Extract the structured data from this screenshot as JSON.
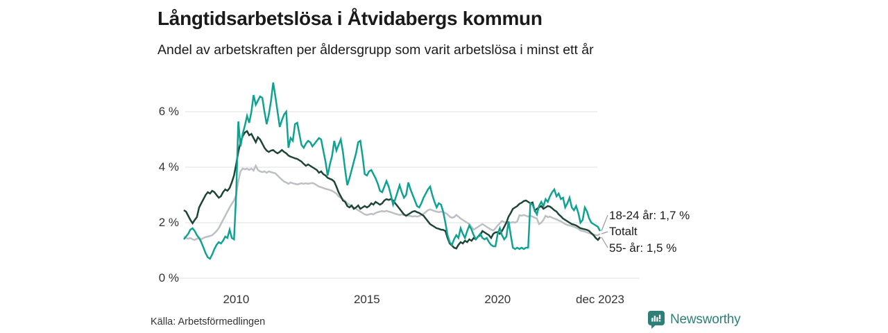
{
  "header": {
    "title": "Långtidsarbetslösa i Åtvidabergs kommun",
    "subtitle": "Andel av arbetskraften per åldersgrupp som varit arbetslösa i minst ett år"
  },
  "footer": {
    "source": "Källa: Arbetsförmedlingen",
    "brand": "Newsworthy",
    "brand_color": "#2d7f77"
  },
  "chart_data": {
    "type": "line",
    "unit": "%",
    "x_start": 2008.0,
    "x_end": 2023.9167,
    "points_per_year": 12,
    "ylim": [
      0,
      7.3
    ],
    "grid": "horizontal",
    "gridline_color": "#e4e6e7",
    "connector_color": "#999999",
    "y_ticks": [
      {
        "value": 0,
        "label": "0 %"
      },
      {
        "value": 2,
        "label": "2 %"
      },
      {
        "value": 4,
        "label": "4 %"
      },
      {
        "value": 6,
        "label": "6 %"
      }
    ],
    "x_ticks": [
      {
        "t": 2010.0,
        "label": "2010"
      },
      {
        "t": 2015.0,
        "label": "2015"
      },
      {
        "t": 2020.0,
        "label": "2020"
      },
      {
        "t": 2023.9167,
        "label": "dec 2023"
      }
    ],
    "end_labels": [
      {
        "series": "18-24 år",
        "text": "18-24 år: 1,7 %"
      },
      {
        "series": "Totalt",
        "text": "Totalt"
      },
      {
        "series": "55- år",
        "text": "55- år: 1,5 %"
      }
    ],
    "series": [
      {
        "name": "Totalt",
        "color": "#bcbfc4",
        "values": [
          1.5,
          1.45,
          1.42,
          1.45,
          1.4,
          1.38,
          1.42,
          1.45,
          1.4,
          1.45,
          1.48,
          1.5,
          1.52,
          1.55,
          1.62,
          1.7,
          1.8,
          1.95,
          2.1,
          2.25,
          2.4,
          2.55,
          2.68,
          2.8,
          3.0,
          3.5,
          3.85,
          3.95,
          3.92,
          3.95,
          3.9,
          3.95,
          3.88,
          4.05,
          3.9,
          3.85,
          3.82,
          3.85,
          3.8,
          3.85,
          3.82,
          3.8,
          3.78,
          3.7,
          3.62,
          3.55,
          3.48,
          3.45,
          3.4,
          3.45,
          3.42,
          3.4,
          3.38,
          3.4,
          3.42,
          3.4,
          3.42,
          3.4,
          3.42,
          3.43,
          3.4,
          3.35,
          3.3,
          3.28,
          3.25,
          3.22,
          3.2,
          3.18,
          3.15,
          3.1,
          3.05,
          2.95,
          2.9,
          2.85,
          2.78,
          2.7,
          2.65,
          2.6,
          2.55,
          2.5,
          2.45,
          2.4,
          2.35,
          2.3,
          2.28,
          2.3,
          2.32,
          2.3,
          2.35,
          2.38,
          2.4,
          2.42,
          2.4,
          2.43,
          2.4,
          2.38,
          2.35,
          2.32,
          2.3,
          2.28,
          2.3,
          2.28,
          2.26,
          2.25,
          2.24,
          2.22,
          2.24,
          2.22,
          2.24,
          2.28,
          2.32,
          2.38,
          2.45,
          2.48,
          2.45,
          2.42,
          2.4,
          2.38,
          2.4,
          2.38,
          2.35,
          2.3,
          2.22,
          2.18,
          2.2,
          2.28,
          2.22,
          2.15,
          2.1,
          2.05,
          2.0,
          1.95,
          1.85,
          1.75,
          1.8,
          1.85,
          1.9,
          1.95,
          1.9,
          1.85,
          1.8,
          1.75,
          1.72,
          1.8,
          1.9,
          1.98,
          2.06,
          2.02,
          2.0,
          1.98,
          2.0,
          2.02,
          2.0,
          2.05,
          2.27,
          2.25,
          2.28,
          2.25,
          2.22,
          2.25,
          2.22,
          2.18,
          2.15,
          1.95,
          2.0,
          2.1,
          2.25,
          2.2,
          2.22,
          2.18,
          2.15,
          2.12,
          2.08,
          2.05,
          2.0,
          1.95,
          1.92,
          1.9,
          1.88,
          1.85,
          1.82,
          1.78,
          1.72,
          1.7,
          1.68,
          1.65,
          1.62,
          1.6,
          1.58,
          1.55,
          1.55,
          1.6
        ]
      },
      {
        "name": "55- år",
        "color": "#1d4435",
        "values": [
          2.45,
          2.4,
          2.25,
          2.1,
          1.98,
          2.1,
          2.2,
          2.55,
          2.7,
          2.85,
          3.0,
          3.1,
          3.05,
          3.15,
          3.1,
          3.0,
          2.9,
          2.95,
          3.1,
          3.2,
          3.15,
          3.25,
          3.45,
          3.7,
          4.1,
          4.55,
          4.9,
          5.12,
          5.25,
          5.3,
          5.15,
          5.2,
          5.05,
          4.9,
          5.08,
          5.0,
          4.85,
          4.7,
          4.6,
          4.55,
          4.6,
          4.62,
          4.55,
          4.5,
          4.55,
          4.62,
          4.55,
          4.5,
          4.42,
          4.38,
          4.35,
          4.32,
          4.3,
          4.25,
          4.2,
          4.12,
          4.05,
          4.1,
          4.05,
          4.0,
          3.95,
          3.9,
          3.8,
          3.85,
          3.75,
          3.7,
          3.62,
          3.58,
          3.55,
          3.48,
          3.3,
          3.1,
          2.95,
          2.8,
          2.75,
          2.6,
          2.55,
          2.62,
          2.5,
          2.55,
          2.62,
          2.5,
          2.55,
          2.6,
          2.55,
          2.6,
          2.7,
          2.65,
          2.75,
          2.7,
          2.65,
          2.7,
          2.8,
          2.85,
          2.82,
          2.85,
          2.8,
          2.7,
          2.6,
          2.5,
          2.4,
          2.3,
          2.25,
          2.3,
          2.35,
          2.4,
          2.42,
          2.38,
          2.35,
          2.3,
          2.25,
          2.15,
          2.05,
          1.95,
          1.9,
          1.85,
          1.8,
          1.78,
          1.75,
          1.74,
          1.7,
          1.45,
          1.25,
          1.18,
          1.1,
          1.07,
          1.2,
          1.3,
          1.25,
          1.35,
          1.3,
          1.4,
          1.35,
          1.45,
          1.4,
          1.5,
          1.55,
          1.7,
          1.65,
          1.6,
          1.55,
          1.45,
          1.6,
          1.65,
          1.66,
          1.6,
          1.7,
          1.85,
          2.0,
          2.22,
          2.35,
          2.5,
          2.55,
          2.6,
          2.68,
          2.72,
          2.78,
          2.8,
          2.75,
          2.7,
          2.73,
          2.43,
          2.5,
          2.55,
          2.6,
          2.5,
          2.55,
          2.6,
          2.58,
          2.52,
          2.45,
          2.4,
          2.3,
          2.23,
          2.15,
          2.1,
          2.05,
          2.0,
          1.95,
          1.93,
          1.9,
          1.85,
          1.8,
          1.78,
          1.76,
          1.74,
          1.7,
          1.62,
          1.55,
          1.45,
          1.38,
          1.48
        ]
      },
      {
        "name": "18-24 år",
        "color": "#0fa291",
        "values": [
          1.4,
          1.5,
          1.6,
          1.75,
          1.8,
          1.7,
          1.55,
          1.45,
          1.3,
          1.1,
          0.9,
          0.75,
          0.7,
          0.85,
          1.05,
          1.2,
          1.3,
          1.25,
          1.35,
          1.5,
          1.45,
          1.75,
          1.45,
          1.4,
          3.0,
          5.65,
          4.75,
          5.2,
          5.5,
          5.85,
          5.6,
          6.0,
          6.6,
          6.25,
          6.4,
          6.55,
          6.5,
          6.0,
          5.55,
          5.9,
          6.4,
          7.05,
          6.55,
          6.0,
          5.45,
          5.7,
          5.9,
          6.0,
          4.7,
          5.05,
          4.95,
          5.55,
          5.6,
          5.2,
          4.8,
          4.7,
          4.85,
          4.95,
          4.9,
          4.75,
          4.85,
          4.95,
          5.05,
          5.0,
          4.6,
          4.2,
          3.7,
          4.1,
          4.4,
          4.95,
          4.6,
          4.8,
          5.0,
          4.55,
          3.9,
          3.35,
          3.6,
          3.9,
          4.2,
          4.5,
          4.9,
          4.95,
          4.4,
          3.75,
          3.7,
          3.85,
          3.9,
          3.75,
          3.6,
          3.4,
          3.15,
          3.1,
          3.3,
          3.5,
          3.3,
          3.0,
          2.65,
          2.85,
          3.1,
          3.35,
          3.1,
          2.9,
          3.0,
          3.45,
          3.2,
          3.0,
          2.8,
          2.6,
          2.55,
          2.7,
          2.9,
          3.05,
          3.2,
          3.3,
          3.0,
          2.75,
          2.55,
          2.7,
          2.65,
          2.4,
          2.0,
          1.55,
          1.3,
          1.2,
          1.4,
          1.55,
          1.45,
          1.8,
          1.6,
          1.45,
          1.7,
          1.9,
          1.75,
          1.55,
          1.4,
          1.5,
          1.6,
          1.45,
          1.4,
          1.45,
          1.3,
          1.2,
          1.15,
          1.15,
          1.6,
          1.8,
          1.55,
          1.4,
          1.5,
          2.05,
          1.55,
          1.1,
          1.05,
          1.1,
          1.05,
          1.1,
          1.05,
          1.1,
          1.1,
          2.7,
          2.65,
          2.45,
          2.3,
          2.6,
          2.75,
          2.6,
          2.85,
          2.75,
          2.95,
          3.1,
          3.2,
          2.95,
          3.05,
          2.85,
          2.9,
          2.55,
          2.7,
          2.9,
          2.55,
          2.45,
          2.6,
          2.35,
          2.0,
          2.1,
          2.55,
          2.4,
          2.15,
          2.0,
          1.95,
          1.9,
          1.85,
          1.7
        ]
      }
    ]
  }
}
